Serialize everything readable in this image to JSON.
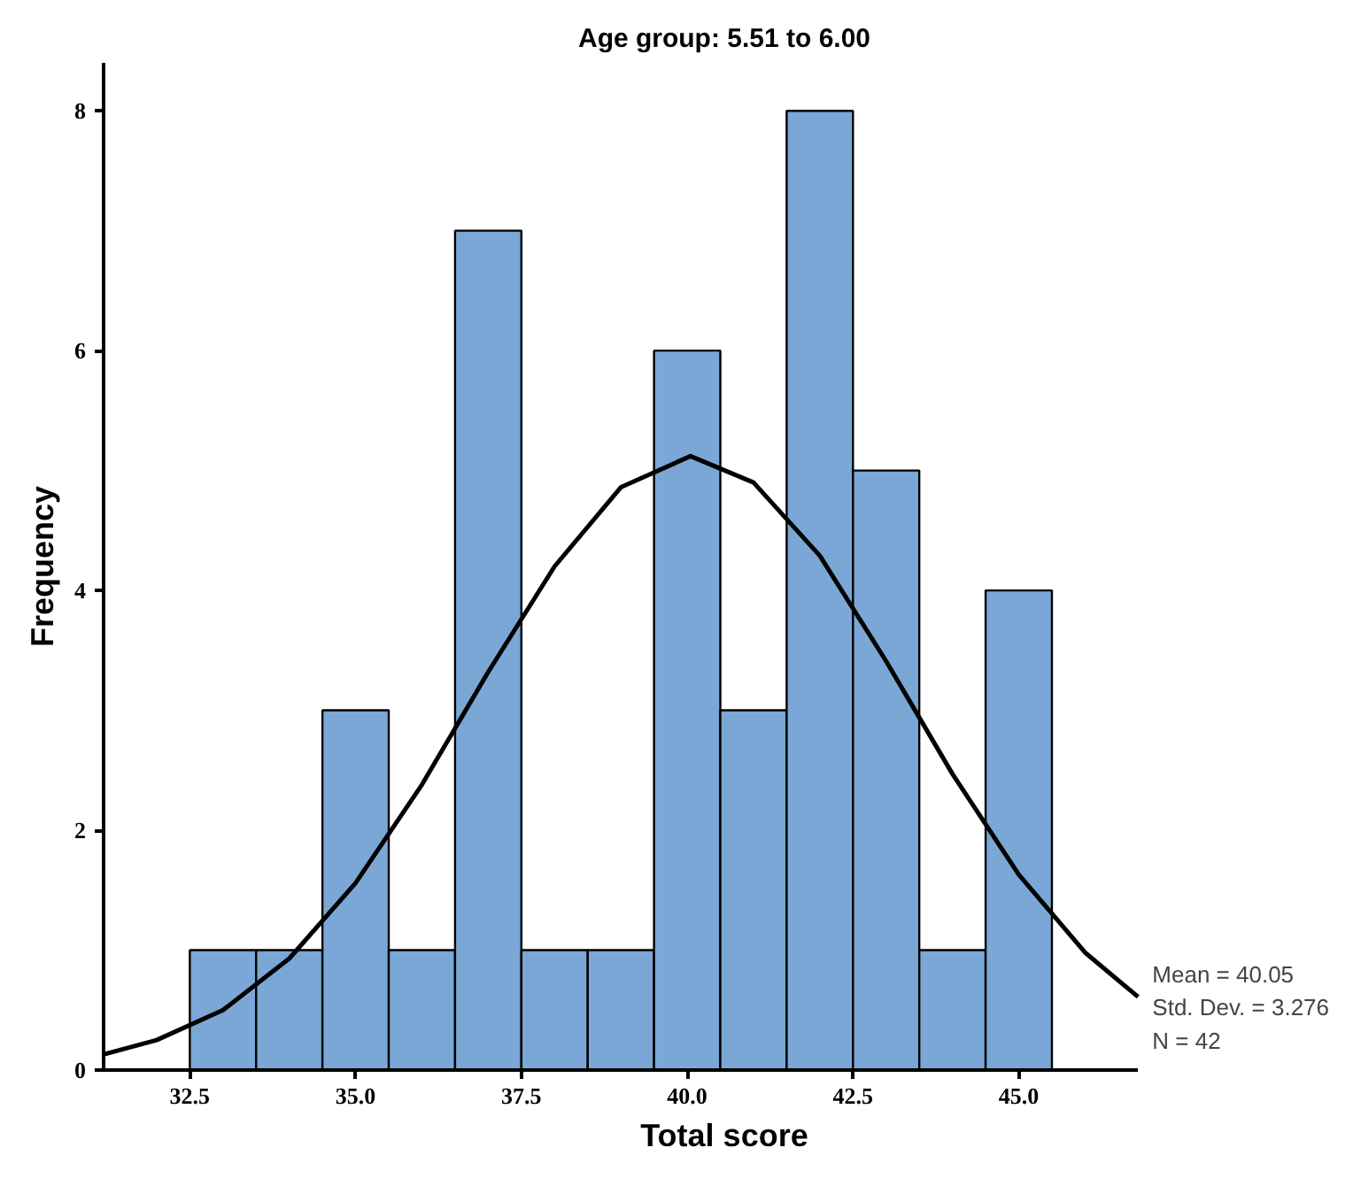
{
  "chart_data": {
    "type": "histogram",
    "title": "Age group: 5.51 to 6.00",
    "xlabel": "Total score",
    "ylabel": "Frequency",
    "bins": [
      32.5,
      33.5,
      34.5,
      35.5,
      36.5,
      37.5,
      38.5,
      39.5,
      40.5,
      41.5,
      42.5,
      43.5,
      44.5,
      45.5
    ],
    "values": [
      1,
      1,
      3,
      1,
      7,
      1,
      1,
      6,
      3,
      8,
      5,
      1,
      4
    ],
    "color": "#7aa7d5",
    "series": [
      {
        "type": "line",
        "color": "#000000",
        "x": [
          31.2,
          32,
          33,
          34,
          35,
          36,
          37,
          38,
          39,
          40.05,
          41,
          42,
          43,
          44,
          45,
          46,
          46.8
        ],
        "values": [
          0.13,
          0.25,
          0.5,
          0.93,
          1.56,
          2.38,
          3.32,
          4.2,
          4.86,
          5.12,
          4.9,
          4.29,
          3.41,
          2.47,
          1.63,
          0.98,
          0.61
        ]
      }
    ],
    "xlim": [
      31.2,
      46.8
    ],
    "ylim": [
      0,
      8.4
    ],
    "xticks": [
      {
        "value": 32.5,
        "label": "32.5"
      },
      {
        "value": 35,
        "label": "35.0"
      },
      {
        "value": 37.5,
        "label": "37.5"
      },
      {
        "value": 40,
        "label": "40.0"
      },
      {
        "value": 42.5,
        "label": "42.5"
      },
      {
        "value": 45,
        "label": "45.0"
      }
    ],
    "yticks": [
      0,
      2,
      4,
      6,
      8
    ],
    "annotations": [
      "Mean = 40.05",
      "Std. Dev. = 3.276",
      "N = 42"
    ],
    "grid": false
  }
}
